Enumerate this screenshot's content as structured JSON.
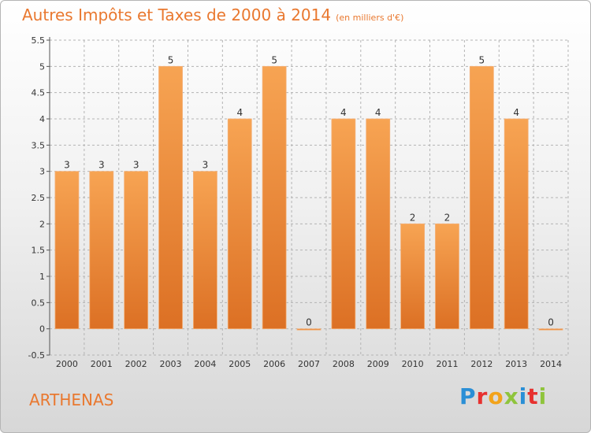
{
  "title": {
    "main": "Autres Impôts et Taxes de 2000 à 2014",
    "unit": "(en milliers d'€)"
  },
  "place": "ARTHENAS",
  "logo": {
    "letters": [
      "P",
      "r",
      "o",
      "x",
      "i",
      "t",
      "i"
    ],
    "colors": [
      "#2a8fd6",
      "#e7312f",
      "#f2a31b",
      "#8fc43c",
      "#2a8fd6",
      "#e7312f",
      "#8fc43c"
    ]
  },
  "chart_data": {
    "type": "bar",
    "categories": [
      "2000",
      "2001",
      "2002",
      "2003",
      "2004",
      "2005",
      "2006",
      "2007",
      "2008",
      "2009",
      "2010",
      "2011",
      "2012",
      "2013",
      "2014"
    ],
    "values": [
      3,
      3,
      3,
      5,
      3,
      4,
      5,
      0,
      4,
      4,
      2,
      2,
      5,
      4,
      0
    ],
    "value_labels": [
      "3",
      "3",
      "3",
      "5",
      "3",
      "4",
      "5",
      "0",
      "4",
      "4",
      "2",
      "2",
      "5",
      "4",
      "0"
    ],
    "yticks": [
      "-0.5",
      "0",
      "0.5",
      "1",
      "1.5",
      "2",
      "2.5",
      "3",
      "3.5",
      "4",
      "4.5",
      "5",
      "5.5"
    ],
    "ylim": [
      -0.5,
      5.5
    ],
    "grid": true,
    "colors": {
      "bar_light": "#f7a453",
      "bar_dark": "#dc7024",
      "grid": "#b4b4b4"
    }
  }
}
